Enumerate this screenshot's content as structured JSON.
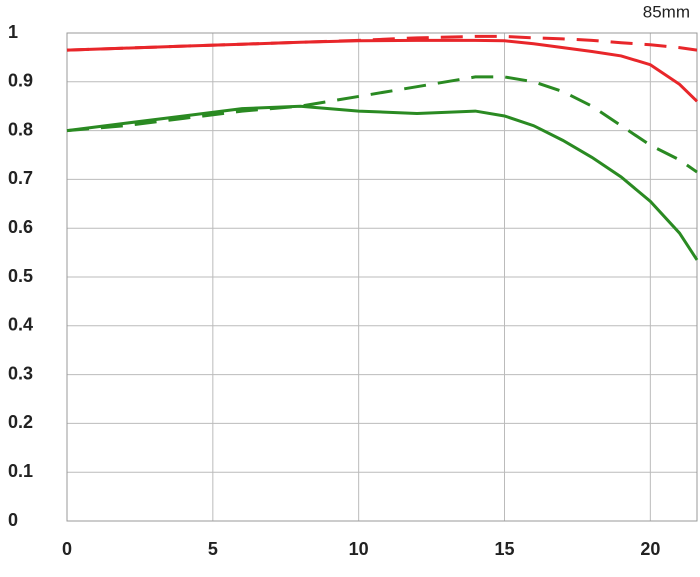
{
  "chart_data": {
    "type": "line",
    "annotation": "85mm",
    "x": [
      0,
      2,
      4,
      6,
      8,
      10,
      12,
      14,
      15,
      16,
      17,
      18,
      19,
      20,
      21,
      21.6
    ],
    "series": [
      {
        "color": "#e8262a",
        "dashed": false,
        "values": [
          0.965,
          0.969,
          0.973,
          0.977,
          0.981,
          0.984,
          0.985,
          0.985,
          0.984,
          0.978,
          0.97,
          0.962,
          0.953,
          0.935,
          0.895,
          0.86
        ]
      },
      {
        "color": "#e8262a",
        "dashed": true,
        "values": [
          0.965,
          0.969,
          0.973,
          0.977,
          0.981,
          0.985,
          0.99,
          0.993,
          0.993,
          0.99,
          0.988,
          0.985,
          0.98,
          0.976,
          0.97,
          0.965
        ]
      },
      {
        "color": "#2a8a22",
        "dashed": false,
        "values": [
          0.8,
          0.815,
          0.83,
          0.845,
          0.85,
          0.84,
          0.835,
          0.84,
          0.83,
          0.81,
          0.78,
          0.745,
          0.705,
          0.655,
          0.59,
          0.535
        ]
      },
      {
        "color": "#2a8a22",
        "dashed": true,
        "values": [
          0.8,
          0.81,
          0.825,
          0.84,
          0.85,
          0.87,
          0.89,
          0.91,
          0.91,
          0.9,
          0.88,
          0.85,
          0.81,
          0.77,
          0.74,
          0.715
        ]
      }
    ],
    "xlim": [
      0,
      21.6
    ],
    "ylim": [
      0,
      1
    ],
    "xticks": [
      0,
      5,
      10,
      15,
      20
    ],
    "yticks": [
      0,
      0.1,
      0.2,
      0.3,
      0.4,
      0.5,
      0.6,
      0.7,
      0.8,
      0.9,
      1
    ],
    "grid": true
  }
}
